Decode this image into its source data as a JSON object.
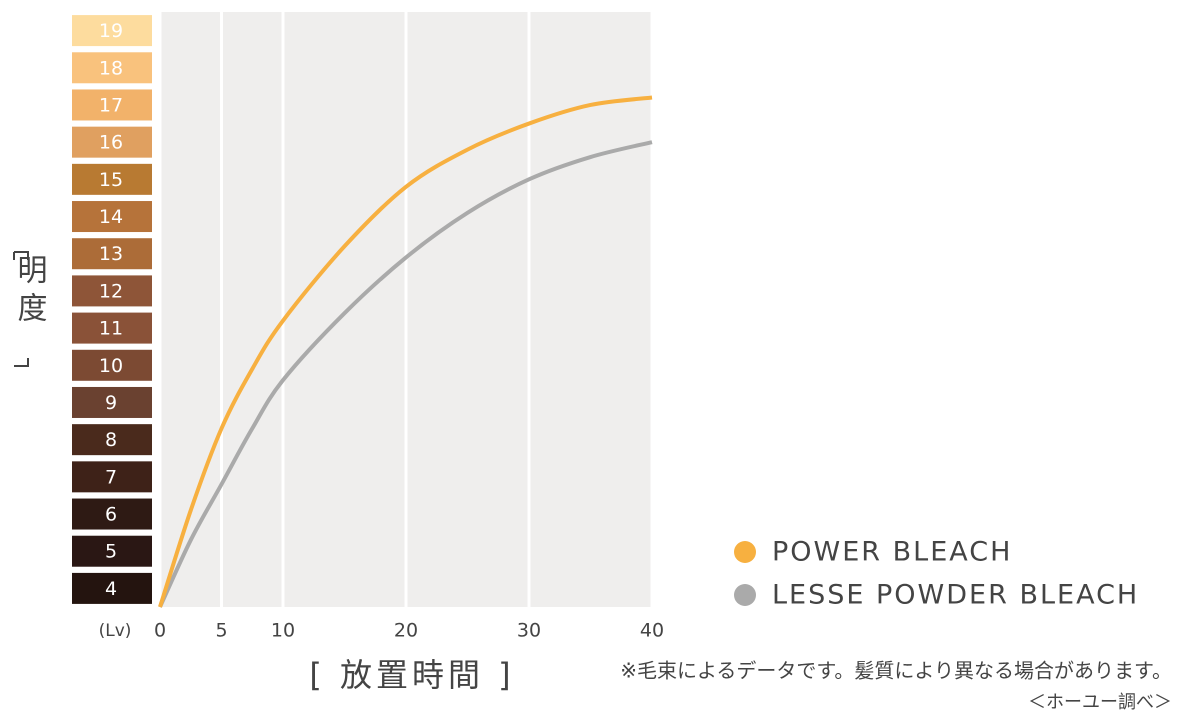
{
  "chart_data": {
    "type": "line",
    "ylabel": "明度",
    "yunit": "(Lv)",
    "xlabel": "[ 放置時間 ]",
    "note": "※毛束によるデータです。髪質により異なる場合があります。",
    "source": "＜ホーユー調べ＞",
    "x": [
      0,
      2.5,
      5,
      7.5,
      10,
      15,
      20,
      25,
      30,
      35,
      40
    ],
    "xlim": [
      0,
      40
    ],
    "xticks": [
      0,
      5,
      10,
      20,
      30,
      40
    ],
    "ylim": [
      3.5,
      19.5
    ],
    "yticks": [
      4,
      5,
      6,
      7,
      8,
      9,
      10,
      11,
      12,
      13,
      14,
      15,
      16,
      17,
      18,
      19
    ],
    "ytick_colors": [
      "#24140f",
      "#2a1714",
      "#2e1a14",
      "#3e2218",
      "#4a2a1c",
      "#6a4130",
      "#7c4a33",
      "#8a5238",
      "#8e5538",
      "#ac6c38",
      "#b6733a",
      "#b87a32",
      "#e0a060",
      "#f2b26a",
      "#f9c27d",
      "#fddc9e"
    ],
    "grid": true,
    "legend": "bottom-right",
    "series": [
      {
        "name": "POWER BLEACH",
        "color": "#f7b040",
        "values": [
          3.5,
          6.1,
          8.3,
          9.9,
          11.2,
          13.2,
          14.8,
          15.8,
          16.5,
          17.0,
          17.2
        ]
      },
      {
        "name": "LESSE POWDER BLEACH",
        "color": "#aaaaaa",
        "values": [
          3.5,
          5.3,
          6.8,
          8.3,
          9.6,
          11.4,
          12.9,
          14.1,
          15.0,
          15.6,
          16.0
        ]
      }
    ]
  }
}
